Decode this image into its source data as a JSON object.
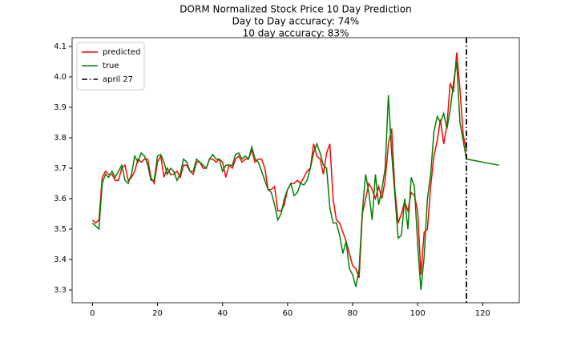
{
  "chart_data": {
    "type": "line",
    "title": "DORM Normalized Stock Price 10 Day Prediction",
    "subtitles": [
      "Day to Day accuracy: 74%",
      "10 day accuracy: 83%"
    ],
    "x": [
      0,
      1,
      2,
      3,
      4,
      5,
      6,
      7,
      8,
      9,
      10,
      11,
      12,
      13,
      14,
      15,
      16,
      17,
      18,
      19,
      20,
      21,
      22,
      23,
      24,
      25,
      26,
      27,
      28,
      29,
      30,
      31,
      32,
      33,
      34,
      35,
      36,
      37,
      38,
      39,
      40,
      41,
      42,
      43,
      44,
      45,
      46,
      47,
      48,
      49,
      50,
      51,
      52,
      53,
      54,
      55,
      56,
      57,
      58,
      59,
      60,
      61,
      62,
      63,
      64,
      65,
      66,
      67,
      68,
      69,
      70,
      71,
      72,
      73,
      74,
      75,
      76,
      77,
      78,
      79,
      80,
      81,
      82,
      83,
      84,
      85,
      86,
      87,
      88,
      89,
      90,
      91,
      92,
      93,
      94,
      95,
      96,
      97,
      98,
      99,
      100,
      101,
      102,
      103,
      104,
      105,
      106,
      107,
      108,
      109,
      110,
      111,
      112,
      113,
      114,
      115,
      116,
      117,
      118,
      119,
      120,
      121,
      122,
      123,
      124,
      125
    ],
    "series": [
      {
        "name": "predicted",
        "color": "#ff0000",
        "values": [
          3.53,
          3.52,
          3.53,
          3.67,
          3.69,
          3.68,
          3.68,
          3.66,
          3.66,
          3.7,
          3.71,
          3.66,
          3.67,
          3.69,
          3.73,
          3.72,
          3.73,
          3.73,
          3.67,
          3.65,
          3.72,
          3.74,
          3.67,
          3.7,
          3.68,
          3.68,
          3.69,
          3.67,
          3.71,
          3.71,
          3.69,
          3.68,
          3.72,
          3.72,
          3.7,
          3.7,
          3.73,
          3.73,
          3.72,
          3.73,
          3.72,
          3.67,
          3.71,
          3.7,
          3.73,
          3.74,
          3.72,
          3.73,
          3.73,
          3.76,
          3.72,
          3.73,
          3.73,
          3.7,
          3.63,
          3.63,
          3.64,
          3.56,
          3.56,
          3.58,
          3.63,
          3.65,
          3.65,
          3.66,
          3.65,
          3.67,
          3.69,
          3.7,
          3.78,
          3.74,
          3.73,
          3.68,
          3.75,
          3.78,
          3.6,
          3.53,
          3.52,
          3.49,
          3.46,
          3.42,
          3.38,
          3.37,
          3.34,
          3.55,
          3.6,
          3.65,
          3.63,
          3.6,
          3.64,
          3.6,
          3.66,
          3.78,
          3.83,
          3.63,
          3.52,
          3.55,
          3.59,
          3.56,
          3.62,
          3.61,
          3.56,
          3.35,
          3.49,
          3.5,
          3.64,
          3.74,
          3.79,
          3.86,
          3.78,
          3.84,
          3.98,
          3.95,
          4.08,
          3.96,
          3.81,
          3.76,
          null,
          null,
          null,
          null,
          null,
          null,
          null,
          null,
          null,
          null
        ]
      },
      {
        "name": "true",
        "color": "#008000",
        "values": [
          3.52,
          3.51,
          3.5,
          3.65,
          3.68,
          3.67,
          3.69,
          3.67,
          3.69,
          3.71,
          3.66,
          3.65,
          3.68,
          3.74,
          3.72,
          3.75,
          3.74,
          3.71,
          3.66,
          3.66,
          3.74,
          3.745,
          3.72,
          3.68,
          3.7,
          3.69,
          3.66,
          3.68,
          3.73,
          3.72,
          3.69,
          3.69,
          3.73,
          3.72,
          3.71,
          3.7,
          3.73,
          3.745,
          3.73,
          3.73,
          3.69,
          3.71,
          3.71,
          3.71,
          3.745,
          3.75,
          3.73,
          3.74,
          3.73,
          3.77,
          3.73,
          3.72,
          3.69,
          3.66,
          3.63,
          3.62,
          3.58,
          3.53,
          3.55,
          3.6,
          3.63,
          3.65,
          3.61,
          3.62,
          3.65,
          3.645,
          3.66,
          3.7,
          3.75,
          3.78,
          3.75,
          3.71,
          3.7,
          3.57,
          3.52,
          3.52,
          3.48,
          3.42,
          3.46,
          3.37,
          3.35,
          3.31,
          3.37,
          3.56,
          3.68,
          3.62,
          3.53,
          3.68,
          3.58,
          3.63,
          3.7,
          3.94,
          3.75,
          3.61,
          3.47,
          3.48,
          3.6,
          3.5,
          3.67,
          3.64,
          3.45,
          3.3,
          3.41,
          3.6,
          3.68,
          3.82,
          3.87,
          3.85,
          3.88,
          3.83,
          3.89,
          3.98,
          4.05,
          3.85,
          3.79,
          3.73,
          3.728,
          3.726,
          3.724,
          3.722,
          3.72,
          3.718,
          3.716,
          3.714,
          3.712,
          3.71
        ]
      }
    ],
    "vlines": [
      {
        "x": 115,
        "label": "april 27",
        "color": "#000000",
        "style": "dashdot"
      }
    ],
    "xlim": [
      -6.25,
      131.25
    ],
    "ylim": [
      3.258,
      4.129
    ],
    "xticks": [
      0,
      20,
      40,
      60,
      80,
      100,
      120
    ],
    "yticks": [
      3.3,
      3.4,
      3.5,
      3.6,
      3.7,
      3.8,
      3.9,
      {
        "value": 4,
        "label": "4.0"
      },
      4.1
    ],
    "grid": false,
    "legend": "upper left"
  }
}
